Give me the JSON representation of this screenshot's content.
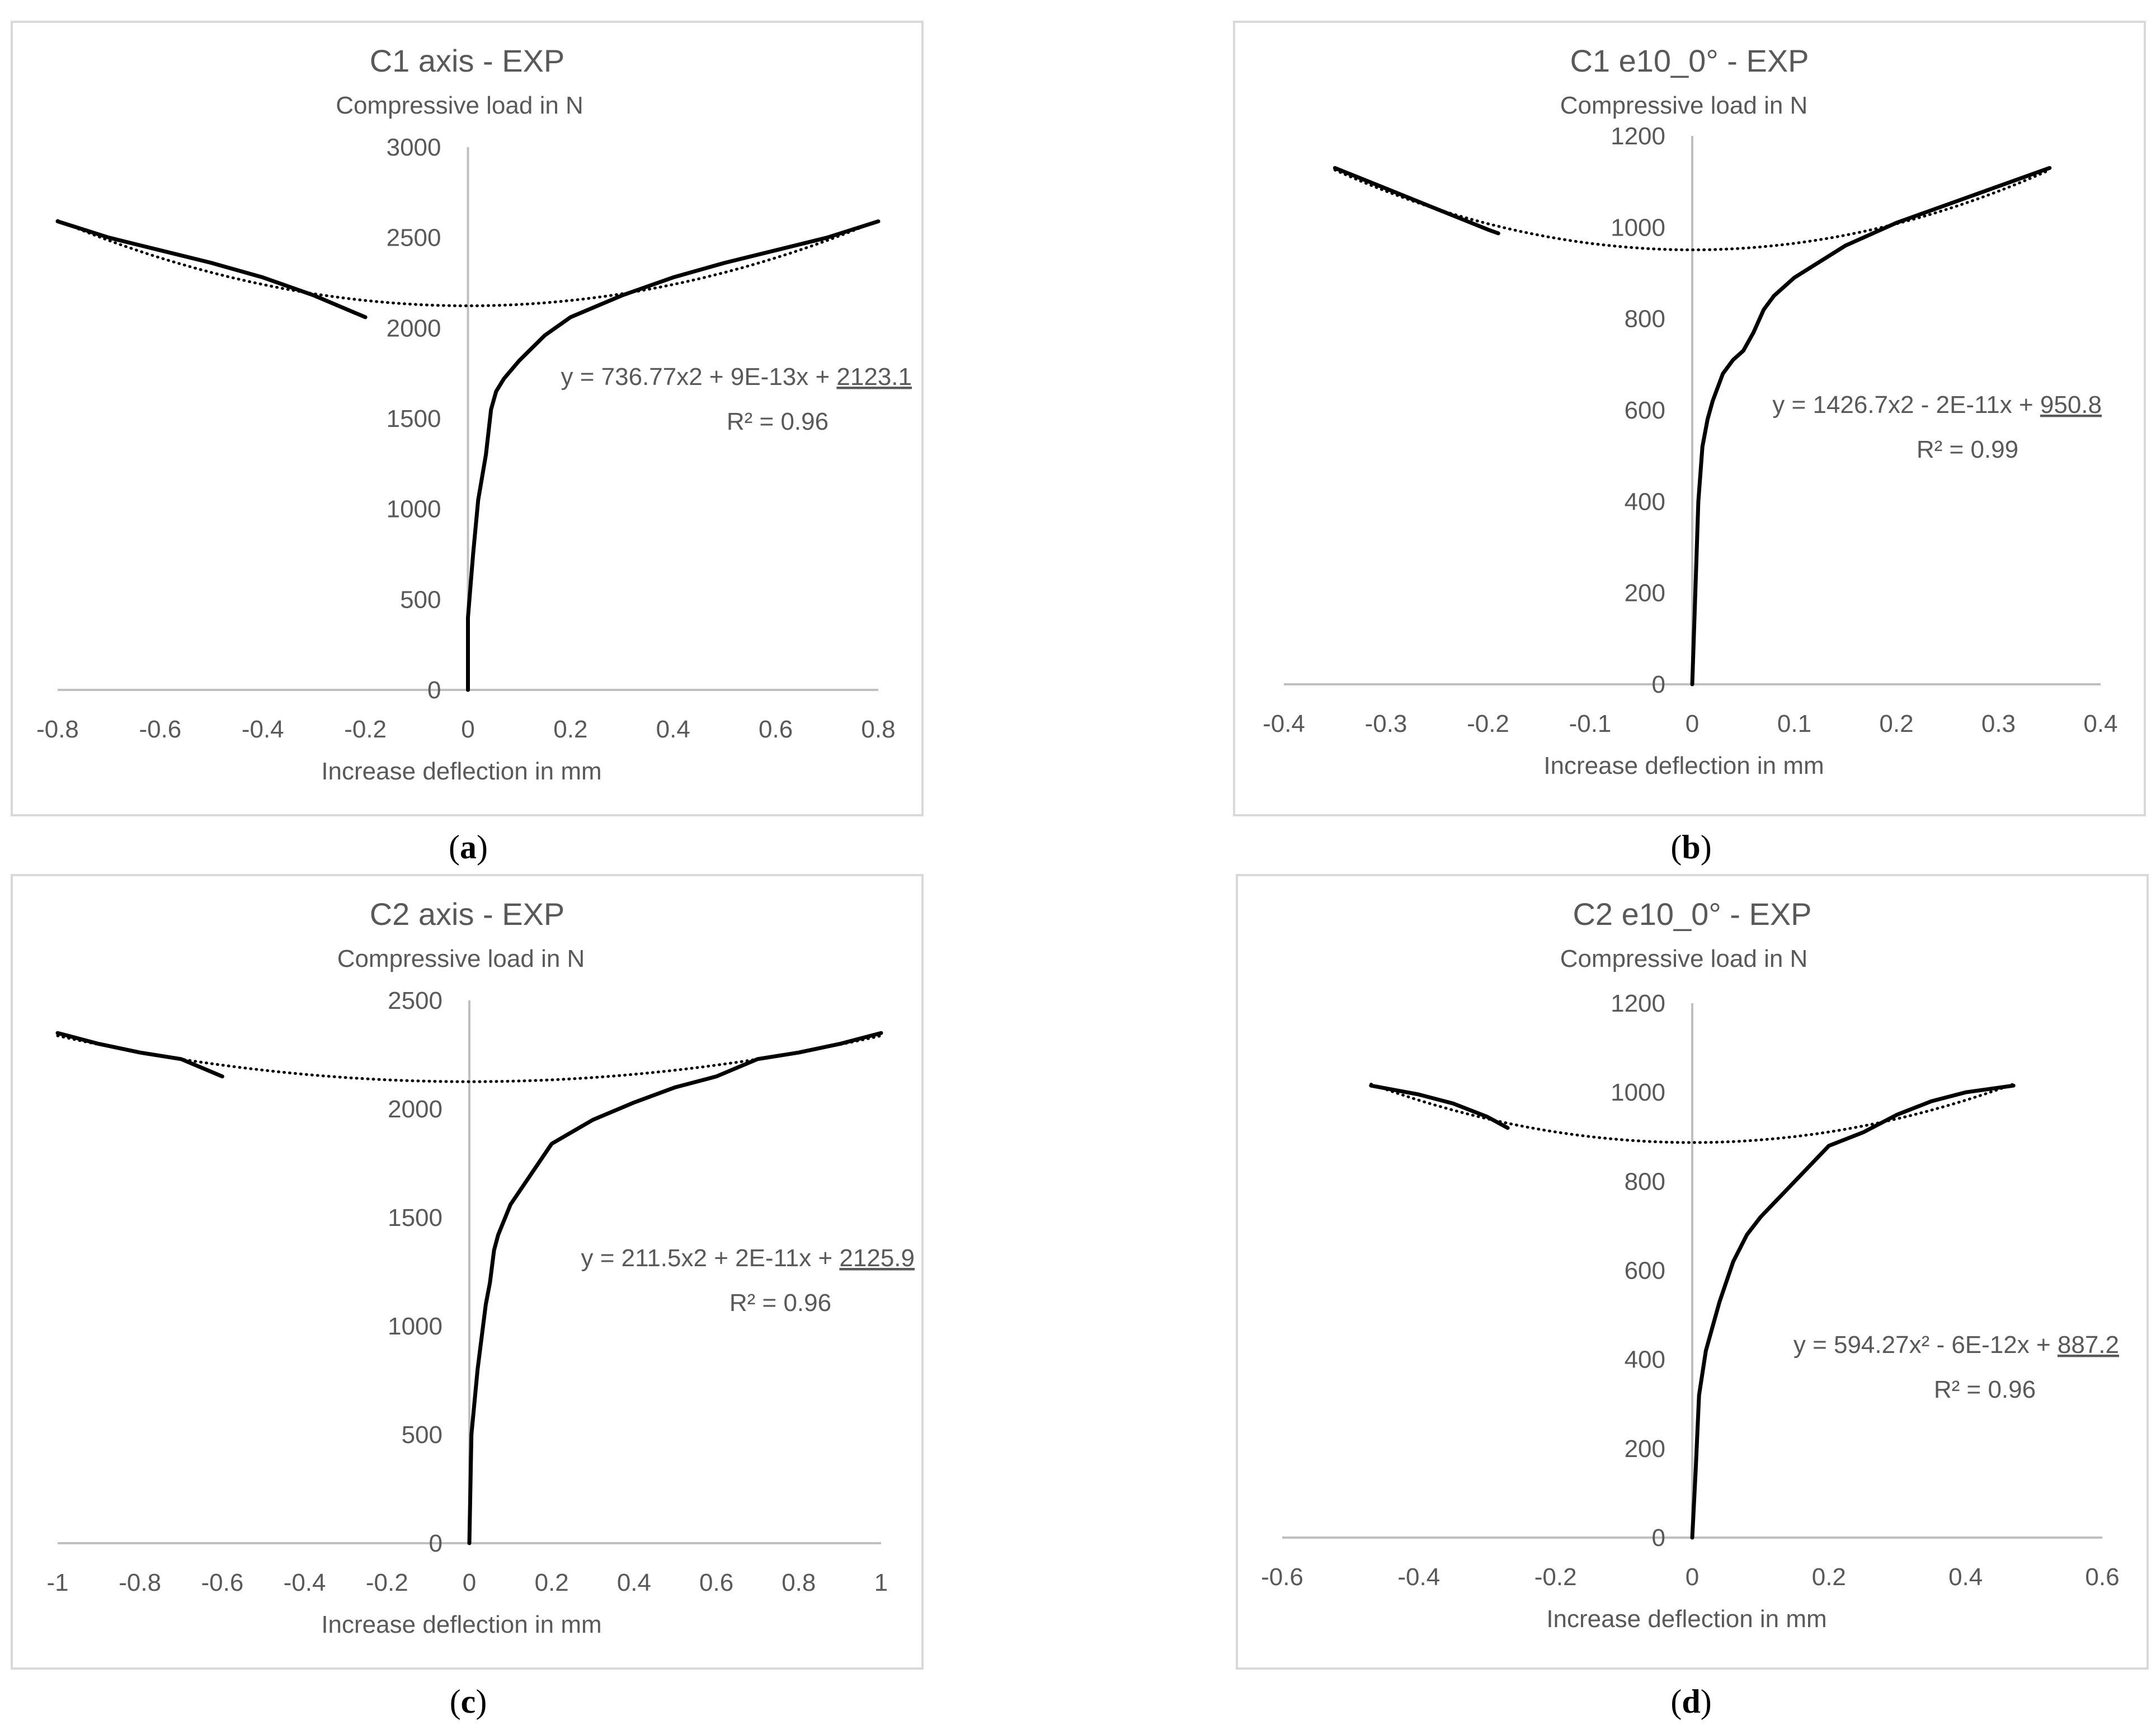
{
  "colors": {
    "frame": "#d9d9d9",
    "axis": "#bfbfbf",
    "text": "#595959",
    "series": "#000000",
    "trend": "#000000"
  },
  "chart_data": [
    {
      "id": "a",
      "type": "line",
      "title": "C1 axis - EXP",
      "ylabel": "Compressive load in N",
      "xlabel": "Increase deflection in mm",
      "xlim": [
        -0.8,
        0.8
      ],
      "ylim": [
        0,
        3000
      ],
      "xticks": [
        "-0.8",
        "-0.6",
        "-0.4",
        "-0.2",
        "0",
        "0.2",
        "0.4",
        "0.6",
        "0.8"
      ],
      "yticks": [
        "0",
        "500",
        "1000",
        "1500",
        "2000",
        "2500",
        "3000"
      ],
      "grid": false,
      "series": [
        {
          "name": "experimental",
          "style": "solid",
          "x": [
            0.0,
            0.0,
            0.01,
            0.02,
            0.035,
            0.045,
            0.055,
            0.07,
            0.1,
            0.15,
            0.2,
            0.3,
            0.4,
            0.5,
            0.6,
            0.7,
            0.8
          ],
          "y": [
            0,
            400,
            750,
            1050,
            1300,
            1550,
            1650,
            1720,
            1820,
            1960,
            2060,
            2180,
            2280,
            2360,
            2430,
            2500,
            2590
          ]
        },
        {
          "name": "experimental mirrored",
          "style": "solid",
          "x": [
            -0.2,
            -0.3,
            -0.4,
            -0.5,
            -0.6,
            -0.7,
            -0.8
          ],
          "y": [
            2060,
            2180,
            2280,
            2360,
            2430,
            2500,
            2590
          ]
        },
        {
          "name": "poly trend",
          "style": "dotted",
          "poly": [
            736.77,
            9e-13,
            2123.1
          ],
          "domain": [
            -0.8,
            0.8
          ]
        }
      ],
      "equation": "y = 736.77x2 + 9E-13x + ",
      "equation_constant": "2123.1",
      "r2": "R² = 0.96",
      "caption": "a"
    },
    {
      "id": "b",
      "type": "line",
      "title": "C1 e10_0° - EXP",
      "ylabel": "Compressive load in N",
      "xlabel": "Increase deflection in mm",
      "xlim": [
        -0.4,
        0.4
      ],
      "ylim": [
        0,
        1200
      ],
      "xticks": [
        "-0.4",
        "-0.3",
        "-0.2",
        "-0.1",
        "0",
        "0.1",
        "0.2",
        "0.3",
        "0.4"
      ],
      "yticks": [
        "0",
        "200",
        "400",
        "600",
        "800",
        "1000",
        "1200"
      ],
      "grid": false,
      "series": [
        {
          "name": "experimental",
          "style": "solid",
          "x": [
            0.0,
            0.003,
            0.006,
            0.01,
            0.015,
            0.02,
            0.03,
            0.04,
            0.05,
            0.06,
            0.07,
            0.08,
            0.1,
            0.15,
            0.2,
            0.25,
            0.3,
            0.35
          ],
          "y": [
            0,
            200,
            400,
            520,
            580,
            620,
            680,
            710,
            730,
            770,
            820,
            850,
            890,
            960,
            1010,
            1050,
            1090,
            1130
          ]
        },
        {
          "name": "experimental mirrored",
          "style": "solid",
          "x": [
            -0.19,
            -0.2,
            -0.25,
            -0.3,
            -0.35
          ],
          "y": [
            987,
            995,
            1040,
            1085,
            1130
          ]
        },
        {
          "name": "poly trend",
          "style": "dotted",
          "poly": [
            1426.7,
            -2e-11,
            950.8
          ],
          "domain": [
            -0.35,
            0.35
          ]
        }
      ],
      "equation": "y = 1426.7x2 - 2E-11x + ",
      "equation_constant": "950.8",
      "r2": "R² = 0.99",
      "caption": "b"
    },
    {
      "id": "c",
      "type": "line",
      "title": "C2 axis - EXP",
      "ylabel": "Compressive load in N",
      "xlabel": "Increase deflection in mm",
      "xlim": [
        -1,
        1
      ],
      "ylim": [
        0,
        2500
      ],
      "xticks": [
        "-1",
        "-0.8",
        "-0.6",
        "-0.4",
        "-0.2",
        "0",
        "0.2",
        "0.4",
        "0.6",
        "0.8",
        "1"
      ],
      "yticks": [
        "0",
        "500",
        "1000",
        "1500",
        "2000",
        "2500"
      ],
      "grid": false,
      "series": [
        {
          "name": "experimental",
          "style": "solid",
          "x": [
            0.0,
            0.005,
            0.02,
            0.04,
            0.05,
            0.06,
            0.07,
            0.1,
            0.15,
            0.2,
            0.3,
            0.4,
            0.5,
            0.6,
            0.7,
            0.8,
            0.9,
            1.0
          ],
          "y": [
            0,
            500,
            800,
            1100,
            1200,
            1350,
            1420,
            1560,
            1700,
            1840,
            1950,
            2030,
            2100,
            2150,
            2230,
            2260,
            2300,
            2350
          ]
        },
        {
          "name": "experimental mirrored",
          "style": "solid",
          "x": [
            -0.6,
            -0.7,
            -0.8,
            -0.9,
            -1.0
          ],
          "y": [
            2150,
            2230,
            2260,
            2300,
            2350
          ]
        },
        {
          "name": "poly trend",
          "style": "dotted",
          "poly": [
            211.5,
            2e-11,
            2125.9
          ],
          "domain": [
            -1,
            1
          ]
        }
      ],
      "equation": "y = 211.5x2 + 2E-11x + ",
      "equation_constant": "2125.9",
      "r2": "R² = 0.96",
      "caption": "c"
    },
    {
      "id": "d",
      "type": "line",
      "title": "C2 e10_0° - EXP",
      "ylabel": "Compressive load in N",
      "xlabel": "Increase deflection in mm",
      "xlim": [
        -0.6,
        0.6
      ],
      "ylim": [
        0,
        1200
      ],
      "xticks": [
        "-0.6",
        "-0.4",
        "-0.2",
        "0",
        "0.2",
        "0.4",
        "0.6"
      ],
      "yticks": [
        "0",
        "200",
        "400",
        "600",
        "800",
        "1000",
        "1200"
      ],
      "grid": false,
      "series": [
        {
          "name": "experimental",
          "style": "solid",
          "x": [
            0.0,
            0.005,
            0.01,
            0.02,
            0.04,
            0.06,
            0.08,
            0.1,
            0.15,
            0.2,
            0.25,
            0.3,
            0.35,
            0.4,
            0.47
          ],
          "y": [
            0,
            150,
            320,
            420,
            530,
            620,
            680,
            720,
            800,
            880,
            910,
            950,
            980,
            1000,
            1015
          ]
        },
        {
          "name": "experimental mirrored",
          "style": "solid",
          "x": [
            -0.27,
            -0.3,
            -0.35,
            -0.4,
            -0.47
          ],
          "y": [
            920,
            945,
            975,
            995,
            1015
          ]
        },
        {
          "name": "poly trend",
          "style": "dotted",
          "poly": [
            594.27,
            -6e-12,
            887.2
          ],
          "domain": [
            -0.47,
            0.47
          ]
        }
      ],
      "equation": "y = 594.27x² - 6E-12x + ",
      "equation_constant": "887.2",
      "r2": "R² = 0.96",
      "caption": "d"
    }
  ]
}
